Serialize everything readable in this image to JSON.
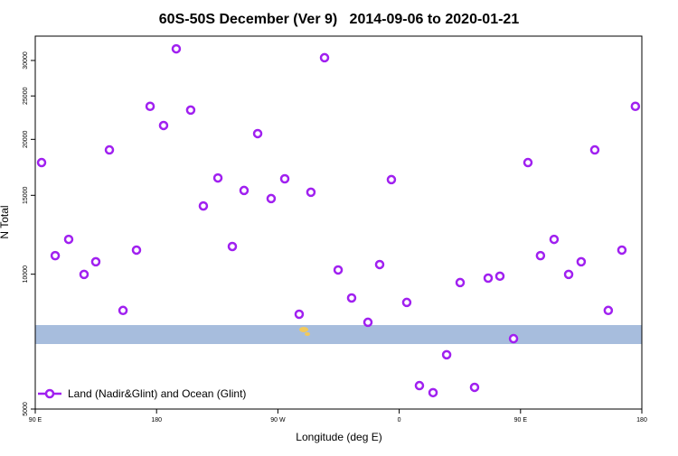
{
  "chart_data": {
    "type": "scatter",
    "title": "60S-50S December (Ver 9)   2014-09-06 to 2020-01-21",
    "x_label": "Longitude (deg E)",
    "y_label": "N Total",
    "xlim": [
      90,
      540
    ],
    "xticks": [
      {
        "value": 90,
        "label": "90 E"
      },
      {
        "value": 180,
        "label": "180"
      },
      {
        "value": 270,
        "label": "90 W"
      },
      {
        "value": 360,
        "label": "0"
      },
      {
        "value": 450,
        "label": "90 E"
      },
      {
        "value": 540,
        "label": "180"
      }
    ],
    "ylim": [
      5000,
      34000
    ],
    "yticks": [
      5000,
      10000,
      15000,
      20000,
      25000,
      30000
    ],
    "log_y": true,
    "legend": "bottom-left",
    "series": [
      {
        "name": "Land (Nadir&Glint) and Ocean (Glint)",
        "color": "#a020f0",
        "x": [
          94.7,
          104.8,
          114.8,
          126.2,
          134.9,
          145.0,
          155.1,
          165.1,
          175.2,
          185.2,
          194.6,
          205.3,
          214.7,
          225.5,
          236.2,
          244.9,
          255.0,
          265.0,
          275.1,
          285.8,
          294.5,
          304.6,
          314.7,
          324.7,
          336.8,
          345.5,
          354.2,
          365.6,
          375.0,
          385.1,
          395.2,
          405.2,
          415.9,
          426.0,
          434.7,
          444.8,
          455.5,
          464.8,
          474.9,
          485.7,
          495.0,
          505.1,
          515.1,
          525.2,
          535.2
        ],
        "values": [
          17750,
          11000,
          11960,
          9990,
          10660,
          18940,
          8300,
          11320,
          23700,
          21480,
          31850,
          23250,
          14200,
          16400,
          11530,
          15380,
          20600,
          14750,
          16330,
          8140,
          15240,
          30430,
          10220,
          8850,
          7810,
          10510,
          16260,
          8650,
          5640,
          5440,
          6610,
          9580,
          5590,
          9800,
          9900,
          7180,
          17750,
          11000,
          11960,
          9990,
          10660,
          18940,
          8300,
          11320,
          23700
        ]
      }
    ]
  }
}
